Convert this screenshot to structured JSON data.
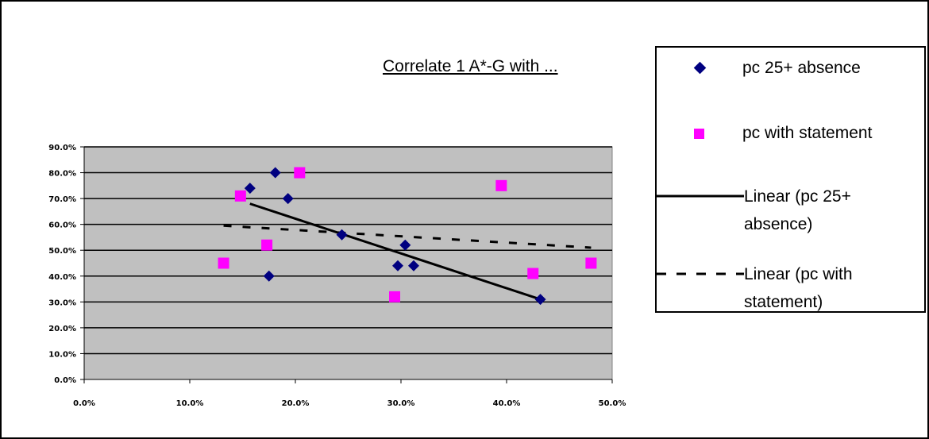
{
  "chart_data": {
    "type": "scatter",
    "title": "Correlate 1 A*-G with ...",
    "xlim": [
      0,
      0.5
    ],
    "ylim": [
      0,
      0.9
    ],
    "x_ticks": [
      "0.0%",
      "10.0%",
      "20.0%",
      "30.0%",
      "40.0%",
      "50.0%"
    ],
    "y_ticks": [
      "0.0%",
      "10.0%",
      "20.0%",
      "30.0%",
      "40.0%",
      "50.0%",
      "60.0%",
      "70.0%",
      "80.0%",
      "90.0%"
    ],
    "grid": true,
    "legend_position": "right",
    "plot_background": "#c0c0c0",
    "series": [
      {
        "name": "pc 25+ absence",
        "marker": "diamond",
        "color": "#000080",
        "points": [
          {
            "x": 0.157,
            "y": 0.74
          },
          {
            "x": 0.181,
            "y": 0.8
          },
          {
            "x": 0.193,
            "y": 0.7
          },
          {
            "x": 0.175,
            "y": 0.4
          },
          {
            "x": 0.244,
            "y": 0.56
          },
          {
            "x": 0.297,
            "y": 0.44
          },
          {
            "x": 0.304,
            "y": 0.52
          },
          {
            "x": 0.312,
            "y": 0.44
          },
          {
            "x": 0.432,
            "y": 0.31
          }
        ]
      },
      {
        "name": "pc with statement",
        "marker": "square",
        "color": "#ff00ff",
        "points": [
          {
            "x": 0.132,
            "y": 0.45
          },
          {
            "x": 0.148,
            "y": 0.71
          },
          {
            "x": 0.173,
            "y": 0.52
          },
          {
            "x": 0.204,
            "y": 0.8
          },
          {
            "x": 0.294,
            "y": 0.32
          },
          {
            "x": 0.395,
            "y": 0.75
          },
          {
            "x": 0.425,
            "y": 0.41
          },
          {
            "x": 0.48,
            "y": 0.45
          }
        ]
      }
    ],
    "trendlines": [
      {
        "name": "Linear (pc 25+ absence)",
        "line": "solid",
        "x": [
          0.157,
          0.432
        ],
        "y": [
          0.68,
          0.31
        ]
      },
      {
        "name": "Linear (pc with statement)",
        "line": "dashed",
        "x": [
          0.132,
          0.48
        ],
        "y": [
          0.595,
          0.51
        ]
      }
    ]
  },
  "legend": {
    "items": [
      {
        "label_lines": [
          "pc 25+ absence"
        ],
        "symbol": "diamond"
      },
      {
        "label_lines": [
          "pc with statement"
        ],
        "symbol": "square"
      },
      {
        "label_lines": [
          "Linear (pc 25+",
          "absence)"
        ],
        "symbol": "solid-line"
      },
      {
        "label_lines": [
          "Linear (pc with",
          "statement)"
        ],
        "symbol": "dashed-line"
      }
    ]
  }
}
